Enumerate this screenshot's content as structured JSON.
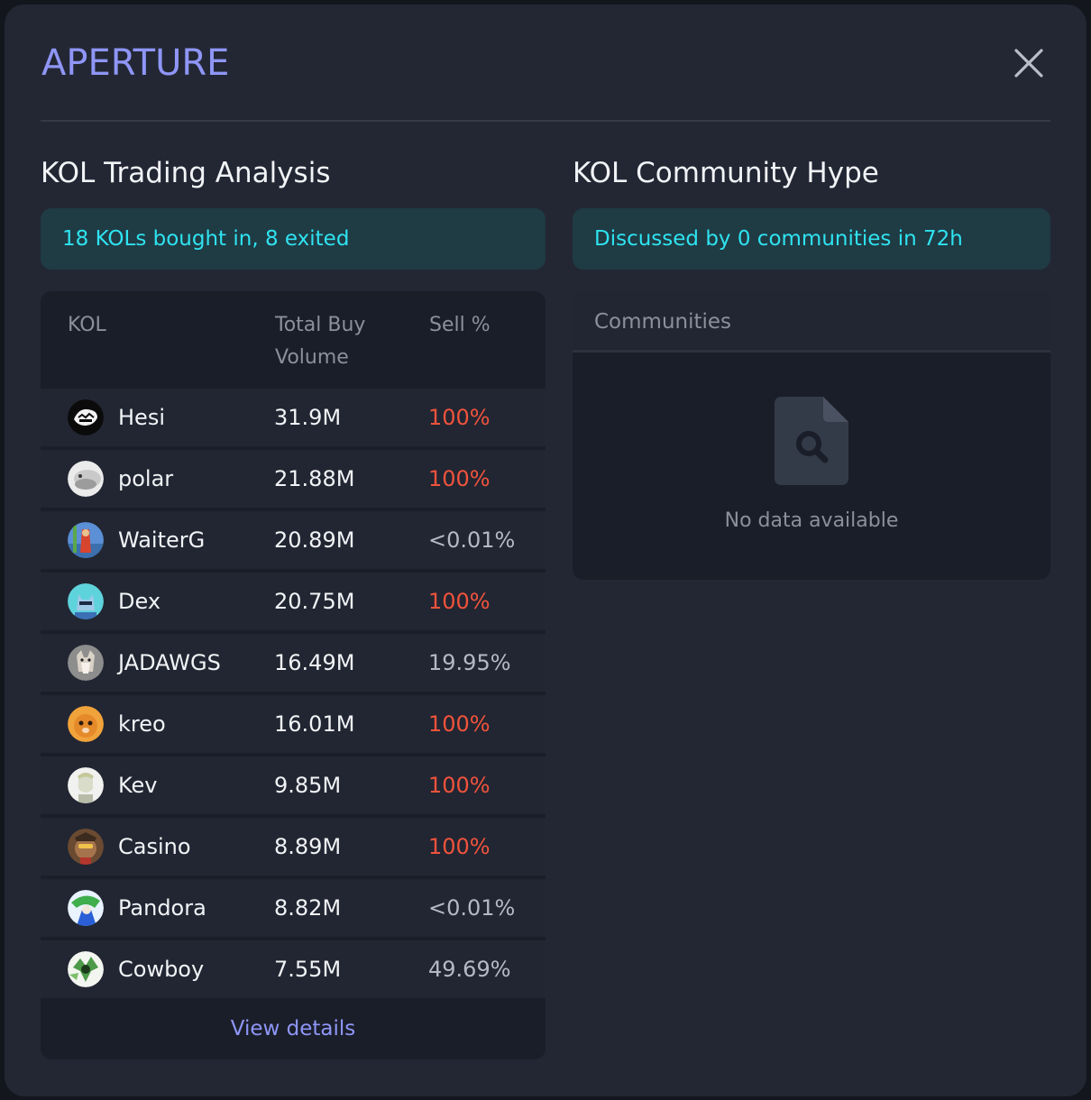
{
  "header": {
    "title": "APERTURE",
    "close_icon": "close-icon"
  },
  "trading": {
    "title": "KOL Trading Analysis",
    "summary": "18 KOLs bought in, 8 exited",
    "columns": {
      "kol": "KOL",
      "volume": "Total Buy Volume",
      "sell": "Sell %"
    },
    "rows": [
      {
        "name": "Hesi",
        "volume": "31.9M",
        "sell": "100%",
        "sell_status": "red",
        "avatar": "avatar-hesi"
      },
      {
        "name": "polar",
        "volume": "21.88M",
        "sell": "100%",
        "sell_status": "red",
        "avatar": "avatar-polar"
      },
      {
        "name": "WaiterG",
        "volume": "20.89M",
        "sell": "<0.01%",
        "sell_status": "gray",
        "avatar": "avatar-waiterg"
      },
      {
        "name": "Dex",
        "volume": "20.75M",
        "sell": "100%",
        "sell_status": "red",
        "avatar": "avatar-dex"
      },
      {
        "name": "JADAWGS",
        "volume": "16.49M",
        "sell": "19.95%",
        "sell_status": "gray",
        "avatar": "avatar-jadawgs"
      },
      {
        "name": "kreo",
        "volume": "16.01M",
        "sell": "100%",
        "sell_status": "red",
        "avatar": "avatar-kreo"
      },
      {
        "name": "Kev",
        "volume": "9.85M",
        "sell": "100%",
        "sell_status": "red",
        "avatar": "avatar-kev"
      },
      {
        "name": "Casino",
        "volume": "8.89M",
        "sell": "100%",
        "sell_status": "red",
        "avatar": "avatar-casino"
      },
      {
        "name": "Pandora",
        "volume": "8.82M",
        "sell": "<0.01%",
        "sell_status": "gray",
        "avatar": "avatar-pandora"
      },
      {
        "name": "Cowboy",
        "volume": "7.55M",
        "sell": "49.69%",
        "sell_status": "gray",
        "avatar": "avatar-cowboy"
      }
    ],
    "view_details": "View details"
  },
  "community": {
    "title": "KOL Community Hype",
    "summary": "Discussed by 0 communities in 72h",
    "header": "Communities",
    "empty_icon": "document-search-icon",
    "empty_text": "No data available"
  },
  "colors": {
    "accent": "#8f96f7",
    "cyan": "#2fe3f0",
    "red": "#f0533c",
    "gray": "#b3bac6",
    "background": "#232734"
  }
}
